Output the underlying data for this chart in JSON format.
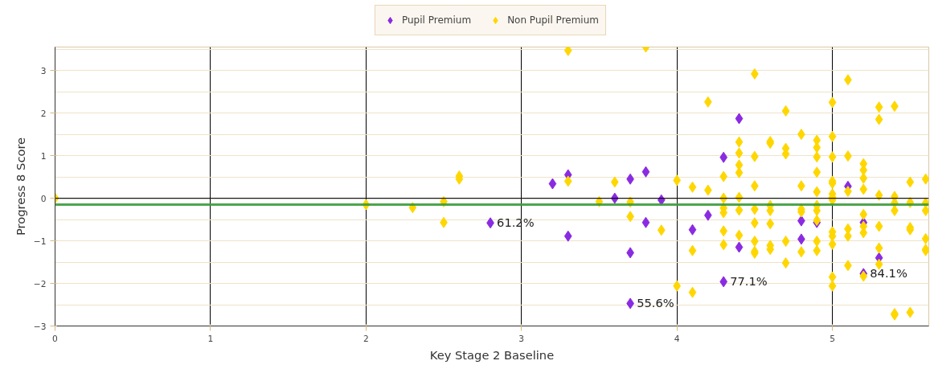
{
  "chart_data": {
    "type": "scatter",
    "xlabel": "Key Stage 2 Baseline",
    "ylabel": "Progress 8 Score",
    "xlim": [
      0,
      5.62
    ],
    "ylim": [
      -3,
      3.55
    ],
    "xticks": [
      0,
      1,
      2,
      3,
      4,
      5
    ],
    "yticks": [
      -3,
      -2,
      -1,
      0,
      1,
      2,
      3
    ],
    "grid": true,
    "legend": "top",
    "marker": "diamond",
    "ref_lines": [
      {
        "axis": "y",
        "value": 0,
        "color": "#000000"
      },
      {
        "axis": "y",
        "value": -0.15,
        "color": "#3a9a3a"
      }
    ],
    "annotations": [
      {
        "text": "61.2%",
        "x": 2.8,
        "y": -0.58
      },
      {
        "text": "55.6%",
        "x": 3.7,
        "y": -2.47
      },
      {
        "text": "77.1%",
        "x": 4.3,
        "y": -1.96
      },
      {
        "text": "84.1%",
        "x": 5.2,
        "y": -1.77
      }
    ],
    "series": [
      {
        "name": "Pupil Premium",
        "color": "#8a2be2",
        "x": [
          2.8,
          3.2,
          3.3,
          3.3,
          3.6,
          3.7,
          3.7,
          3.8,
          3.8,
          3.9,
          4.1,
          4.2,
          4.3,
          4.3,
          4.4,
          4.4,
          3.7,
          4.8,
          4.8,
          4.9,
          5.1,
          5.2,
          5.3,
          5.2
        ],
        "values": [
          -0.58,
          0.34,
          0.55,
          -0.89,
          0.0,
          0.45,
          -1.28,
          0.62,
          -0.57,
          -0.04,
          -0.74,
          -0.4,
          0.96,
          -1.96,
          1.87,
          -1.15,
          -2.47,
          -0.53,
          -0.96,
          -0.57,
          0.28,
          -0.57,
          -1.4,
          -1.77
        ]
      },
      {
        "name": "Non Pupil Premium",
        "color": "#ffd700",
        "x": [
          0,
          2.0,
          2.3,
          2.5,
          2.5,
          2.6,
          2.6,
          3.3,
          3.8,
          3.3,
          3.5,
          3.6,
          3.7,
          3.7,
          3.9,
          4.0,
          4.0,
          4.1,
          4.1,
          4.1,
          4.2,
          4.2,
          4.3,
          4.3,
          4.3,
          4.3,
          4.3,
          4.3,
          4.4,
          4.4,
          4.4,
          4.4,
          4.4,
          4.4,
          4.4,
          4.5,
          4.5,
          4.5,
          4.5,
          4.5,
          4.5,
          4.5,
          4.5,
          4.6,
          4.6,
          4.6,
          4.6,
          4.6,
          4.6,
          4.6,
          4.7,
          4.7,
          4.7,
          4.7,
          4.7,
          4.8,
          4.8,
          4.8,
          4.8,
          4.8,
          4.9,
          4.9,
          4.9,
          4.9,
          4.9,
          4.9,
          4.9,
          4.9,
          4.9,
          4.9,
          5.0,
          5.0,
          5.0,
          5.0,
          5.0,
          5.0,
          5.0,
          5.0,
          5.0,
          5.0,
          5.0,
          5.0,
          5.0,
          5.1,
          5.1,
          5.1,
          5.1,
          5.1,
          5.1,
          5.2,
          5.2,
          5.2,
          5.2,
          5.2,
          5.2,
          5.2,
          5.2,
          5.3,
          5.3,
          5.3,
          5.3,
          5.3,
          5.3,
          5.4,
          5.4,
          5.4,
          5.4,
          5.4,
          5.4,
          5.5,
          5.5,
          5.5,
          5.5,
          5.5,
          5.6,
          5.6,
          5.6,
          5.6,
          5.6,
          5.6
        ],
        "values": [
          0.0,
          -0.15,
          -0.22,
          -0.08,
          -0.57,
          0.45,
          0.52,
          3.47,
          3.55,
          0.4,
          -0.08,
          0.38,
          -0.09,
          -0.43,
          -0.75,
          0.42,
          -2.06,
          0.26,
          -1.23,
          -2.21,
          2.26,
          0.19,
          0.51,
          0.0,
          -0.23,
          -0.34,
          -0.77,
          -1.09,
          1.32,
          1.06,
          0.78,
          0.6,
          0.02,
          -0.28,
          -0.87,
          2.92,
          0.98,
          0.29,
          -0.26,
          -0.58,
          -1.01,
          -1.25,
          -1.29,
          1.33,
          1.29,
          -0.17,
          -0.29,
          -0.6,
          -1.11,
          -1.2,
          2.05,
          1.17,
          1.04,
          -1.01,
          -1.52,
          1.5,
          0.29,
          -0.26,
          -0.32,
          -1.26,
          1.36,
          1.19,
          0.97,
          0.61,
          0.15,
          -0.17,
          -0.29,
          -0.52,
          -1.01,
          -1.23,
          2.25,
          1.45,
          0.97,
          0.4,
          0.35,
          0.1,
          0.02,
          -0.04,
          -0.79,
          -0.89,
          -1.08,
          -1.85,
          -2.06,
          2.78,
          0.99,
          0.16,
          -0.72,
          -0.89,
          -1.58,
          0.81,
          0.66,
          0.47,
          0.21,
          -0.38,
          -0.66,
          -0.81,
          -1.83,
          2.14,
          1.85,
          0.07,
          -0.66,
          -1.17,
          -1.55,
          2.16,
          0.04,
          -0.11,
          -0.29,
          -2.71,
          -2.74,
          0.38,
          -0.1,
          -0.69,
          -0.74,
          -2.68,
          0.45,
          -0.11,
          -0.29,
          -0.95,
          -1.2,
          -1.23
        ]
      }
    ]
  }
}
